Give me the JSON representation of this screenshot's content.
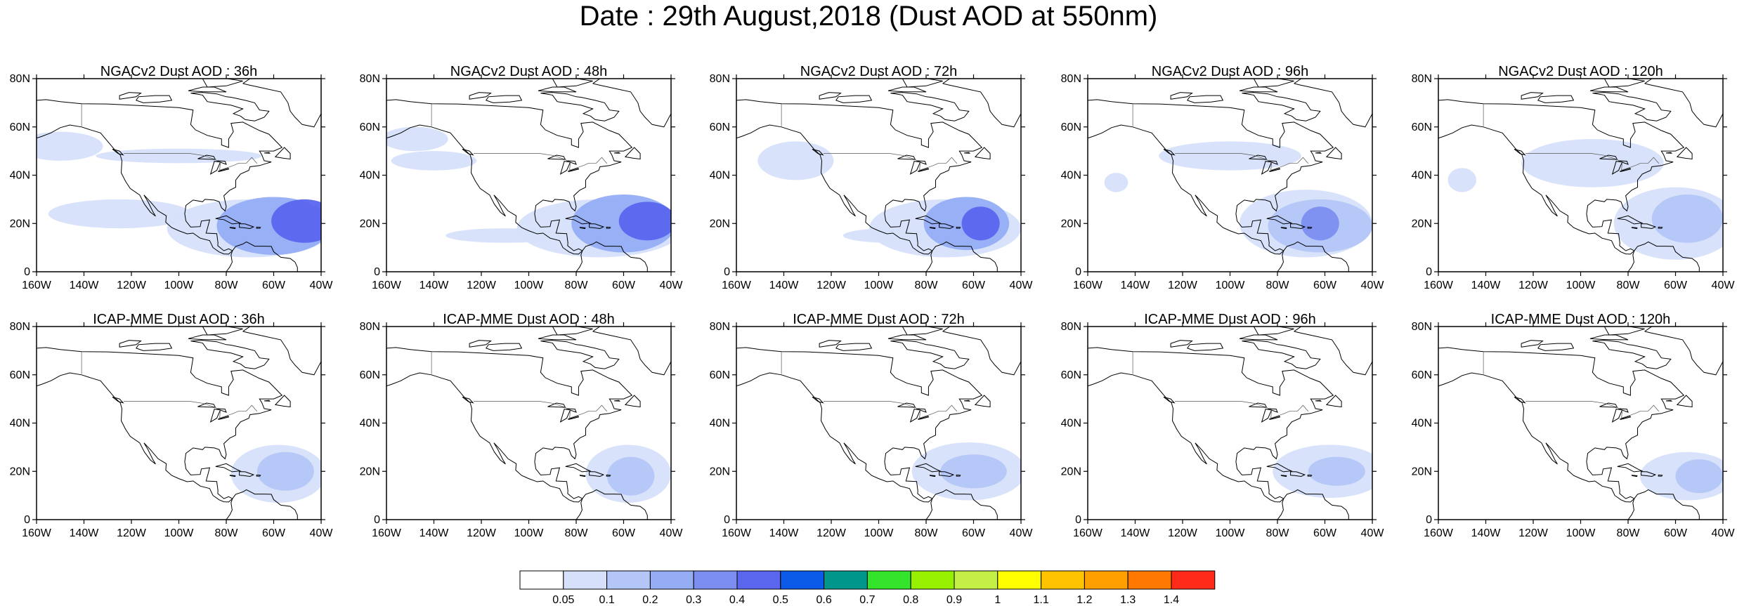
{
  "title": "Date : 29th August,2018 (Dust AOD at 550nm)",
  "lat_ticks": [
    "80N",
    "60N",
    "40N",
    "20N",
    "0"
  ],
  "lon_ticks": [
    "160W",
    "140W",
    "120W",
    "100W",
    "80W",
    "60W",
    "40W"
  ],
  "map_extent": {
    "lon": [
      -160,
      -40
    ],
    "lat": [
      0,
      80
    ]
  },
  "panels": [
    {
      "title": "NGACv2 Dust AOD : 36h",
      "plumes": [
        {
          "lon": -47,
          "lat": 21,
          "rlon": 14,
          "rlat": 9,
          "level": 5
        },
        {
          "lon": -60,
          "lat": 19,
          "rlon": 24,
          "rlat": 12,
          "level": 3
        },
        {
          "lon": -70,
          "lat": 18,
          "rlon": 35,
          "rlat": 12,
          "level": 1
        },
        {
          "lon": -125,
          "lat": 24,
          "rlon": 30,
          "rlat": 6,
          "level": 1
        },
        {
          "lon": -150,
          "lat": 52,
          "rlon": 18,
          "rlat": 6,
          "level": 1
        },
        {
          "lon": -100,
          "lat": 48,
          "rlon": 35,
          "rlat": 3,
          "level": 1
        }
      ]
    },
    {
      "title": "NGACv2 Dust AOD : 48h",
      "plumes": [
        {
          "lon": -50,
          "lat": 21,
          "rlon": 12,
          "rlat": 8,
          "level": 5
        },
        {
          "lon": -60,
          "lat": 20,
          "rlon": 22,
          "rlat": 12,
          "level": 3
        },
        {
          "lon": -70,
          "lat": 18,
          "rlon": 35,
          "rlat": 12,
          "level": 1
        },
        {
          "lon": -148,
          "lat": 55,
          "rlon": 14,
          "rlat": 5,
          "level": 1
        },
        {
          "lon": -140,
          "lat": 46,
          "rlon": 18,
          "rlat": 4,
          "level": 1
        },
        {
          "lon": -110,
          "lat": 15,
          "rlon": 25,
          "rlat": 3,
          "level": 1
        }
      ]
    },
    {
      "title": "NGACv2 Dust AOD : 72h",
      "plumes": [
        {
          "lon": -57,
          "lat": 20,
          "rlon": 8,
          "rlat": 7,
          "level": 5
        },
        {
          "lon": -63,
          "lat": 20,
          "rlon": 18,
          "rlat": 11,
          "level": 3
        },
        {
          "lon": -72,
          "lat": 18,
          "rlon": 32,
          "rlat": 12,
          "level": 1
        },
        {
          "lon": -135,
          "lat": 46,
          "rlon": 16,
          "rlat": 8,
          "level": 1
        },
        {
          "lon": -95,
          "lat": 15,
          "rlon": 20,
          "rlat": 3,
          "level": 1
        }
      ]
    },
    {
      "title": "NGACv2 Dust AOD : 96h",
      "plumes": [
        {
          "lon": -62,
          "lat": 20,
          "rlon": 8,
          "rlat": 7,
          "level": 4
        },
        {
          "lon": -62,
          "lat": 19,
          "rlon": 22,
          "rlat": 11,
          "level": 2
        },
        {
          "lon": -68,
          "lat": 20,
          "rlon": 28,
          "rlat": 14,
          "level": 1
        },
        {
          "lon": -100,
          "lat": 48,
          "rlon": 30,
          "rlat": 6,
          "level": 1
        },
        {
          "lon": -148,
          "lat": 37,
          "rlon": 5,
          "rlat": 4,
          "level": 1
        }
      ]
    },
    {
      "title": "NGACv2 Dust AOD : 120h",
      "plumes": [
        {
          "lon": -55,
          "lat": 22,
          "rlon": 15,
          "rlat": 10,
          "level": 2
        },
        {
          "lon": -60,
          "lat": 20,
          "rlon": 26,
          "rlat": 15,
          "level": 1
        },
        {
          "lon": -95,
          "lat": 45,
          "rlon": 30,
          "rlat": 10,
          "level": 1
        },
        {
          "lon": -150,
          "lat": 38,
          "rlon": 6,
          "rlat": 5,
          "level": 1
        }
      ]
    },
    {
      "title": "ICAP-MME Dust AOD : 36h",
      "plumes": [
        {
          "lon": -55,
          "lat": 20,
          "rlon": 12,
          "rlat": 8,
          "level": 2
        },
        {
          "lon": -58,
          "lat": 19,
          "rlon": 20,
          "rlat": 12,
          "level": 1
        }
      ]
    },
    {
      "title": "ICAP-MME Dust AOD : 48h",
      "plumes": [
        {
          "lon": -57,
          "lat": 18,
          "rlon": 10,
          "rlat": 8,
          "level": 2
        },
        {
          "lon": -58,
          "lat": 19,
          "rlon": 18,
          "rlat": 12,
          "level": 1
        }
      ]
    },
    {
      "title": "ICAP-MME Dust AOD : 72h",
      "plumes": [
        {
          "lon": -60,
          "lat": 20,
          "rlon": 14,
          "rlat": 7,
          "level": 2
        },
        {
          "lon": -62,
          "lat": 20,
          "rlon": 24,
          "rlat": 12,
          "level": 1
        }
      ]
    },
    {
      "title": "ICAP-MME Dust AOD : 96h",
      "plumes": [
        {
          "lon": -55,
          "lat": 20,
          "rlon": 12,
          "rlat": 6,
          "level": 2
        },
        {
          "lon": -58,
          "lat": 20,
          "rlon": 24,
          "rlat": 11,
          "level": 1
        }
      ]
    },
    {
      "title": "ICAP-MME Dust AOD : 120h",
      "plumes": [
        {
          "lon": -50,
          "lat": 18,
          "rlon": 10,
          "rlat": 7,
          "level": 2
        },
        {
          "lon": -55,
          "lat": 18,
          "rlon": 20,
          "rlat": 10,
          "level": 1
        }
      ]
    }
  ],
  "colorbar": {
    "labels": [
      "0.05",
      "0.1",
      "0.2",
      "0.3",
      "0.4",
      "0.5",
      "0.6",
      "0.7",
      "0.8",
      "0.9",
      "1",
      "1.1",
      "1.2",
      "1.3",
      "1.4"
    ],
    "colors": [
      "#ffffff",
      "#d6e0fa",
      "#b4c6f7",
      "#94adf5",
      "#7c8ff0",
      "#5a66ee",
      "#0b5be8",
      "#00968c",
      "#33e42a",
      "#96f000",
      "#c4f045",
      "#ffff00",
      "#ffc300",
      "#ffa000",
      "#ff7800",
      "#ff2a1a"
    ]
  }
}
